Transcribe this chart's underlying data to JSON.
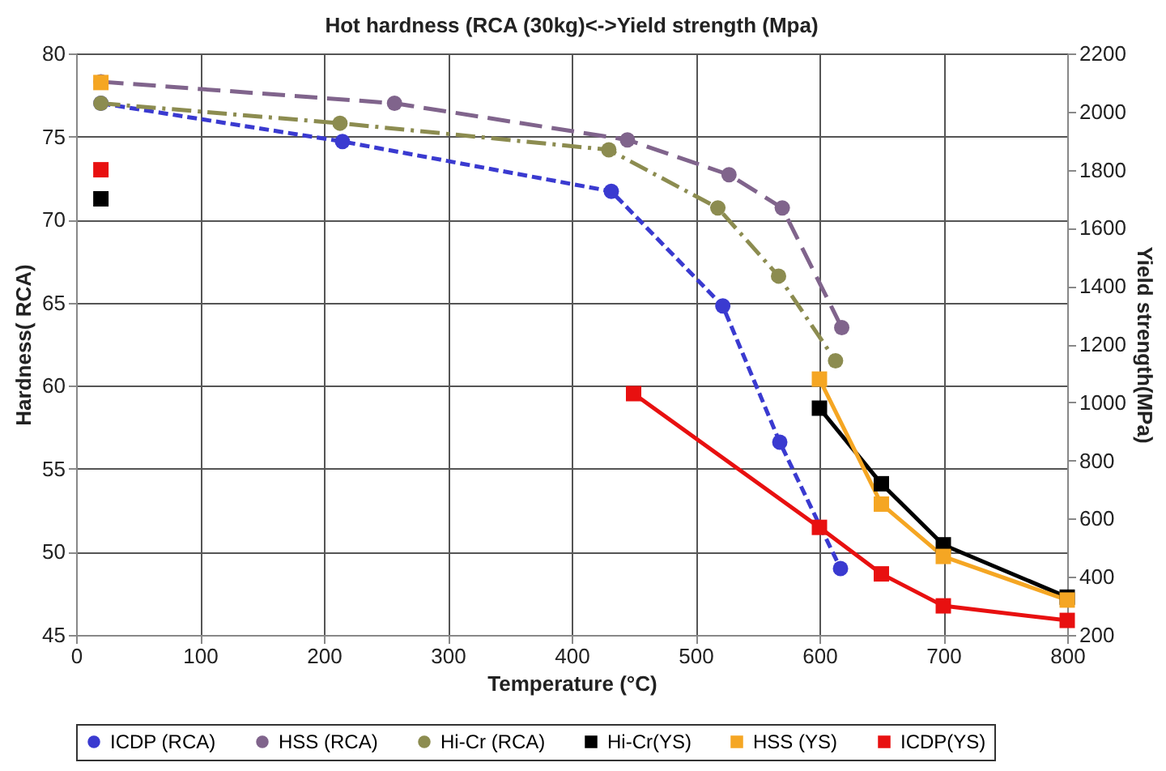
{
  "chart_data": {
    "type": "line",
    "title": "Hot hardness (RCA (30kg)<->Yield strength (Mpa)",
    "xlabel": "Temperature (°C)",
    "ylabel": "Hardness( RCA)",
    "y2label": "Yield strength(MPa)",
    "xlim": [
      0,
      800
    ],
    "xticks": [
      0,
      100,
      200,
      300,
      400,
      500,
      600,
      700,
      800
    ],
    "ylim": [
      45,
      80
    ],
    "yticks": [
      45,
      50,
      55,
      60,
      65,
      70,
      75,
      80
    ],
    "y2lim": [
      200,
      2200
    ],
    "y2ticks": [
      200,
      400,
      600,
      800,
      1000,
      1200,
      1400,
      1600,
      1800,
      2000,
      2200
    ],
    "grid": true,
    "legend": "bottom",
    "series": [
      {
        "name": "ICDP (RCA)",
        "color": "#3a3ad0",
        "marker": "circle",
        "line_style": "dashed",
        "x": [
          20,
          215,
          432,
          522,
          568,
          617
        ],
        "values": [
          77,
          74.7,
          71.7,
          64.8,
          56.6,
          49
        ]
      },
      {
        "name": "HSS (RCA)",
        "color": "#80648c",
        "marker": "circle",
        "line_style": "dashed",
        "x": [
          20,
          257,
          445,
          527,
          570,
          618
        ],
        "values": [
          78.3,
          77,
          74.8,
          72.7,
          70.7,
          63.5
        ]
      },
      {
        "name": "Hi-Cr (RCA)",
        "color": "#8c8c50",
        "marker": "circle",
        "line_style": "dashed",
        "x": [
          20,
          213,
          430,
          518,
          567,
          613
        ],
        "values": [
          77,
          75.8,
          74.2,
          70.7,
          66.6,
          61.5
        ]
      },
      {
        "name": "Hi-Cr(YS)",
        "color": "#000000",
        "marker": "square",
        "line_style": "solid",
        "axis": "y2",
        "x": [
          20,
          310,
          600,
          650,
          700,
          800
        ],
        "values": [
          1700,
          null,
          980,
          720,
          510,
          330
        ]
      },
      {
        "name": "HSS (YS)",
        "color": "#f5a623",
        "marker": "square",
        "line_style": "solid",
        "axis": "y2",
        "x": [
          20,
          310,
          600,
          650,
          700,
          800
        ],
        "values": [
          2100,
          null,
          1080,
          650,
          470,
          320
        ]
      },
      {
        "name": "ICDP(YS)",
        "color": "#e81010",
        "marker": "square",
        "line_style": "solid",
        "axis": "y2",
        "x": [
          20,
          310,
          450,
          600,
          650,
          700,
          800
        ],
        "values": [
          1800,
          null,
          1030,
          570,
          410,
          300,
          250
        ]
      }
    ]
  }
}
